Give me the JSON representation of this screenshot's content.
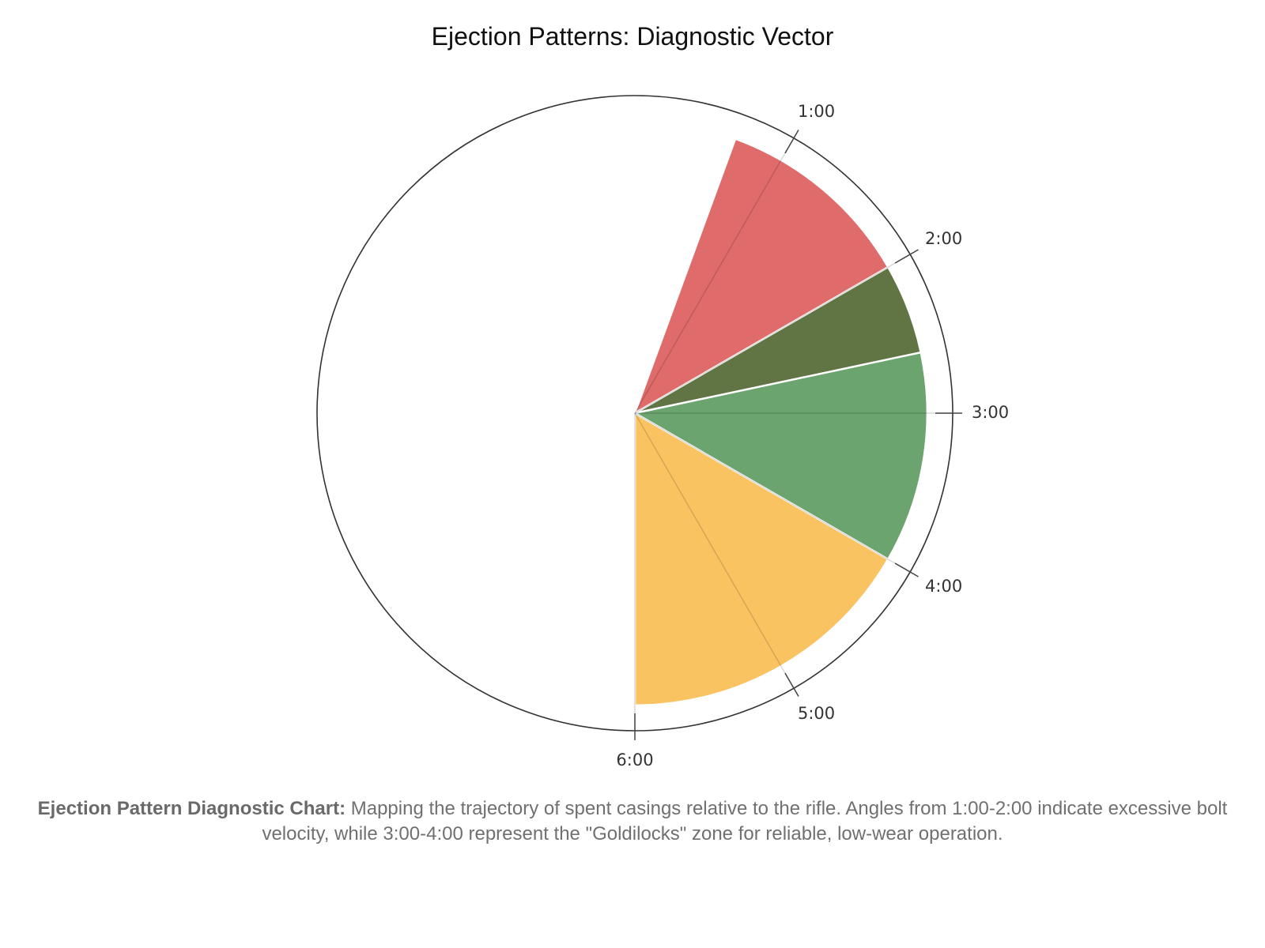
{
  "chart_data": {
    "type": "polar-bar",
    "title": "Ejection Patterns: Diagnostic Vector",
    "angular_unit": "clock position",
    "tick_labels": [
      "1:00",
      "2:00",
      "3:00",
      "4:00",
      "5:00",
      "6:00"
    ],
    "radial_range": [
      0,
      1
    ],
    "sectors": [
      {
        "from": 0.67,
        "to": 2.0,
        "value": 0.92,
        "color": "#e06b6b"
      },
      {
        "from": 2.0,
        "to": 2.6,
        "value": 0.92,
        "color": "#617443"
      },
      {
        "from": 2.6,
        "to": 4.0,
        "value": 0.92,
        "color": "#6ba46e"
      },
      {
        "from": 4.0,
        "to": 6.0,
        "value": 0.92,
        "color": "#f9c362"
      }
    ],
    "grid": false
  },
  "caption": {
    "bold": "Ejection Pattern Diagnostic Chart:",
    "text": " Mapping the trajectory of spent casings relative to the rifle. Angles from 1:00-2:00 indicate excessive bolt velocity, while 3:00-4:00 represent the \"Goldilocks\" zone for reliable, low-wear operation."
  }
}
